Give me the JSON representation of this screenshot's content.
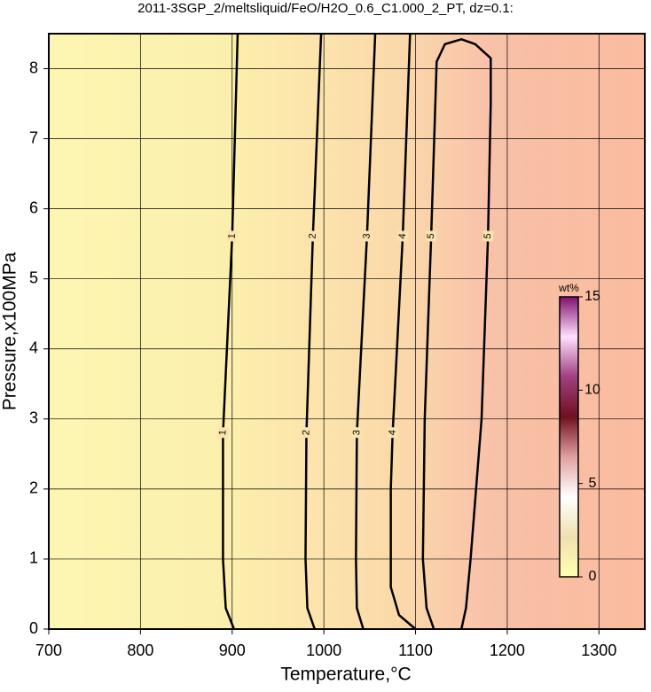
{
  "chart_data": {
    "type": "contour",
    "title": "2011-3SGP_2/meltsliquid/FeO/H2O_0.6_C1.000_2_PT, dz=0.1:",
    "x_label": "Temperature,°C",
    "y_label": "Pressure,x100MPa",
    "xlim": [
      700,
      1350
    ],
    "ylim": [
      0,
      8.5
    ],
    "xticks": [
      700,
      800,
      900,
      1000,
      1100,
      1200,
      1300
    ],
    "yticks": [
      0,
      1,
      2,
      3,
      4,
      5,
      6,
      7,
      8
    ],
    "grid": true,
    "color": "#000000",
    "contours": [
      {
        "level": 1,
        "x": [
          902,
          893,
          890,
          890,
          900,
          906
        ],
        "y": [
          0,
          0.3,
          1,
          2.8,
          5.6,
          8.5
        ]
      },
      {
        "level": 2,
        "x": [
          990,
          982,
          980,
          981,
          988,
          997
        ],
        "y": [
          0,
          0.3,
          1,
          2.8,
          5.6,
          8.5
        ]
      },
      {
        "level": 3,
        "x": [
          1043,
          1036,
          1035,
          1036,
          1047,
          1056
        ],
        "y": [
          0,
          0.3,
          1,
          2.8,
          5.6,
          8.5
        ]
      },
      {
        "level": 4,
        "x": [
          1100,
          1082,
          1073,
          1073,
          1075,
          1086,
          1094
        ],
        "y": [
          0,
          0.2,
          0.6,
          2,
          2.8,
          5.6,
          8.5
        ]
      },
      {
        "level": 5,
        "x": [
          1120,
          1112,
          1108,
          1110,
          1117,
          1123,
          1132,
          1150,
          1165,
          1182,
          1182,
          1179,
          1172,
          1160,
          1155,
          1150
        ],
        "y": [
          0,
          0.3,
          1,
          3,
          5.6,
          8.1,
          8.35,
          8.42,
          8.35,
          8.15,
          7.5,
          5.6,
          3,
          1,
          0.3,
          0
        ]
      }
    ],
    "colorbar": {
      "label": "wt%",
      "lim": [
        0,
        15
      ],
      "ticks": [
        0,
        5,
        10,
        15
      ],
      "colors": [
        "#ffffb0",
        "#f0e0b0",
        "#ffffff",
        "#e0a0a0",
        "#701020",
        "#a04080",
        "#ffe0ff",
        "#801070"
      ]
    }
  }
}
